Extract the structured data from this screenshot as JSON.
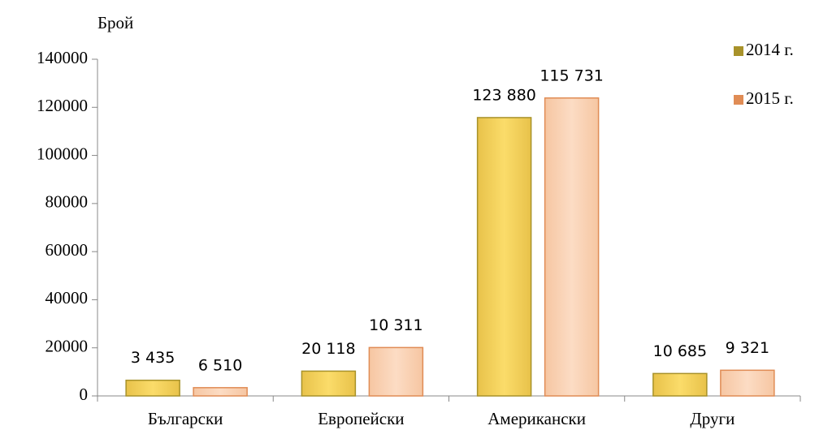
{
  "chart_data": {
    "type": "bar",
    "y_label": "Брой",
    "categories": [
      "Български",
      "Европейски",
      "Американски",
      "Други"
    ],
    "series": [
      {
        "name": "2014 г.",
        "color": "#a8922a",
        "fill": "#f7d561",
        "values": [
          6510,
          10311,
          115731,
          9321
        ],
        "value_labels": [
          "6 510",
          "10 311",
          "115 731",
          "9 321"
        ]
      },
      {
        "name": "2015 г.",
        "color": "#e08c55",
        "fill": "#fad2b6",
        "values": [
          3435,
          20118,
          123880,
          10685
        ],
        "value_labels": [
          "3 435",
          "20 118",
          "123 880",
          "10 685"
        ]
      }
    ],
    "ylim": [
      0,
      140000
    ],
    "yticks": [
      0,
      20000,
      40000,
      60000,
      80000,
      100000,
      120000,
      140000
    ],
    "legend": "top-right"
  }
}
